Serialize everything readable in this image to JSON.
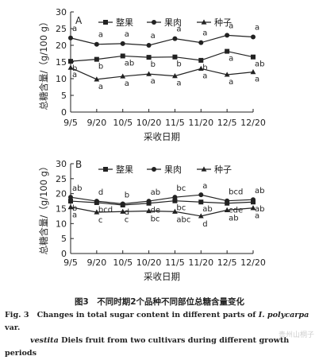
{
  "chart_data": [
    {
      "type": "line",
      "panel_label": "A",
      "ylabel": "总糖含量/（g/100 g）",
      "xlabel": "采收日期",
      "categories": [
        "9/5",
        "9/20",
        "10/5",
        "10/20",
        "11/5",
        "11/20",
        "12/5",
        "12/20"
      ],
      "ylim": [
        0,
        30
      ],
      "yticks": [
        0,
        5,
        10,
        15,
        20,
        25,
        30
      ],
      "legend": {
        "placement": "top"
      },
      "series": [
        {
          "name": "整果",
          "marker": "square",
          "values": [
            15.2,
            15.8,
            16.8,
            16.4,
            16.5,
            15.5,
            18.2,
            16.5
          ],
          "labels": [
            "b",
            "b",
            "ab",
            "b",
            "b",
            "b",
            "a",
            "ab"
          ]
        },
        {
          "name": "果肉",
          "marker": "circle",
          "values": [
            22.2,
            20.3,
            20.5,
            20.0,
            22.0,
            20.8,
            23.0,
            22.5
          ],
          "labels": [
            "a",
            "a",
            "a",
            "a",
            "a",
            "a",
            "a",
            "a"
          ]
        },
        {
          "name": "种子",
          "marker": "triangle",
          "values": [
            13.3,
            9.8,
            10.7,
            11.4,
            10.8,
            13.0,
            11.2,
            12.0
          ],
          "labels": [
            "a",
            "a",
            "a",
            "a",
            "a",
            "a",
            "a",
            "a"
          ]
        }
      ]
    },
    {
      "type": "line",
      "panel_label": "B",
      "ylabel": "总糖含量/（g/100 g）",
      "xlabel": "采收日期",
      "categories": [
        "9/5",
        "9/20",
        "10/5",
        "10/20",
        "11/5",
        "11/20",
        "12/5",
        "12/20"
      ],
      "ylim": [
        0,
        30
      ],
      "yticks": [
        0,
        5,
        10,
        15,
        20,
        25,
        30
      ],
      "legend": {
        "placement": "top"
      },
      "series": [
        {
          "name": "整果",
          "marker": "square",
          "values": [
            17.5,
            17.0,
            16.2,
            16.8,
            17.6,
            17.2,
            16.8,
            17.2
          ],
          "labels": [
            "b",
            "bcd",
            "d",
            "de",
            "bc",
            "ab",
            "cde",
            "ab"
          ]
        },
        {
          "name": "果肉",
          "marker": "circle",
          "values": [
            18.8,
            17.5,
            16.6,
            17.5,
            18.8,
            19.6,
            17.6,
            18.0
          ],
          "labels": [
            "ab",
            "d",
            "b",
            "ab",
            "bc",
            "a",
            "bcd",
            "ab"
          ]
        },
        {
          "name": "种子",
          "marker": "triangle",
          "values": [
            15.5,
            13.8,
            14.0,
            14.2,
            14.0,
            12.5,
            14.5,
            15.2
          ],
          "labels": [
            "a",
            "c",
            "c",
            "bc",
            "abc",
            "d",
            "ab",
            "a"
          ]
        }
      ]
    }
  ],
  "caption": {
    "cn": "图3　不同时期2个品种不同部位总糖含量变化",
    "en_prefix": "Fig. 3",
    "en_main": "Changes in total sugar content in different parts of ",
    "en_italic": "I. polycarpa",
    "en_after": " var.",
    "en_line2_italic": "vestita",
    "en_line2": " Diels fruit from two cultivars during different growth periods"
  },
  "watermark": "贵州山桐子"
}
